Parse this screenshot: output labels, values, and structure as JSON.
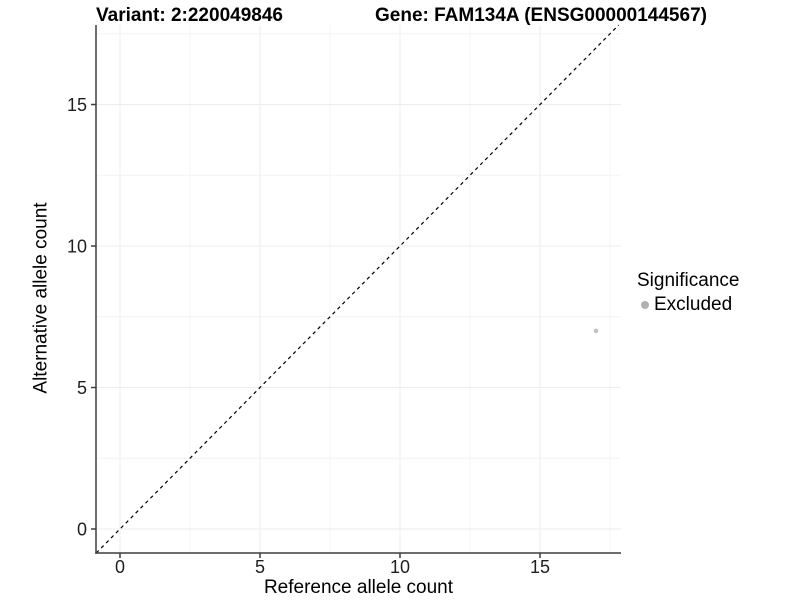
{
  "titles": {
    "variant": "Variant: 2:220049846",
    "gene": "Gene: FAM134A (ENSG00000144567)"
  },
  "axes": {
    "x_label": "Reference allele count",
    "y_label": "Alternative allele count"
  },
  "legend": {
    "title": "Significance",
    "items": [
      {
        "label": "Excluded",
        "color": "#b0b0b0",
        "marker": "dot-icon"
      }
    ]
  },
  "chart_data": {
    "type": "scatter",
    "title": "",
    "xlabel": "Reference allele count",
    "ylabel": "Alternative allele count",
    "xlim": [
      -0.857,
      17.893
    ],
    "ylim": [
      -0.848,
      17.81
    ],
    "x_ticks": [
      0,
      5,
      10,
      15
    ],
    "y_ticks": [
      0,
      5,
      10,
      15
    ],
    "x_tick_labels": [
      "0",
      "5",
      "10",
      "15"
    ],
    "y_tick_labels": [
      "0",
      "5",
      "10",
      "15"
    ],
    "x_minor_ticks": [
      2.5,
      7.5,
      12.5,
      17.5
    ],
    "y_minor_ticks": [
      2.5,
      7.5,
      12.5,
      17.5
    ],
    "grid": true,
    "legend_position": "right",
    "series": [
      {
        "name": "Excluded",
        "color": "#c0c0c0",
        "points": [
          {
            "x": 17,
            "y": 7
          }
        ]
      }
    ],
    "identity_line": {
      "shown": true,
      "equation": "y = x",
      "style": "dashed"
    }
  },
  "colors": {
    "background": "#ffffff",
    "grid_major": "#ededed",
    "grid_minor": "#f4f4f4",
    "axis_line": "#3d3d3d",
    "tick_text": "#1f1f1f",
    "identity_line": "#000000",
    "point": "#c0c0c0",
    "legend_dot": "#b0b0b0"
  }
}
